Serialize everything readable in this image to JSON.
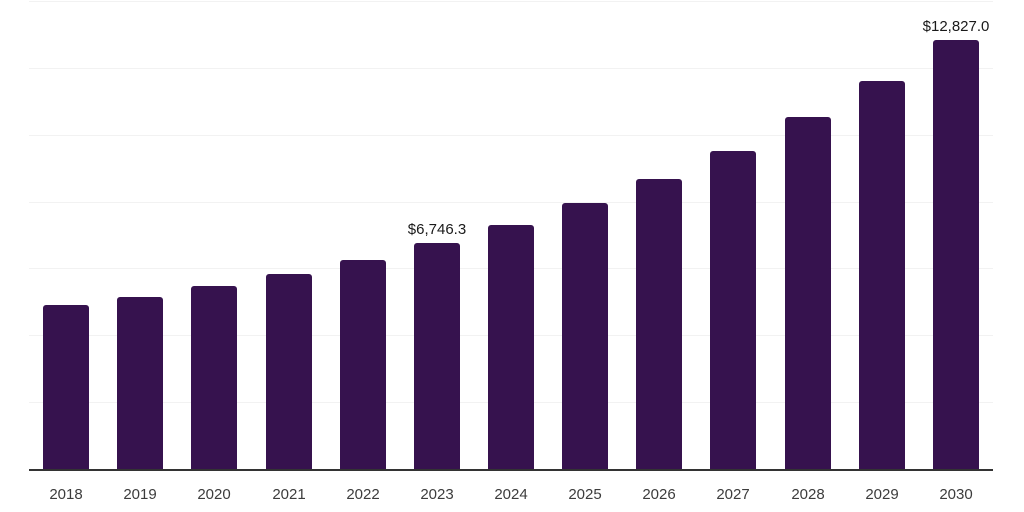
{
  "chart_data": {
    "type": "bar",
    "title": "",
    "xlabel": "",
    "ylabel": "",
    "categories": [
      "2018",
      "2019",
      "2020",
      "2021",
      "2022",
      "2023",
      "2024",
      "2025",
      "2026",
      "2027",
      "2028",
      "2029",
      "2030"
    ],
    "values": [
      4900,
      5150,
      5475,
      5830,
      6250,
      6746.3,
      7300,
      7950,
      8675,
      9520,
      10540,
      11620,
      12827
    ],
    "value_labels": [
      "",
      "",
      "",
      "",
      "",
      "$6,746.3",
      "",
      "",
      "",
      "",
      "",
      "",
      "$12,827.0"
    ],
    "ylim": [
      0,
      14000
    ],
    "gridline_step": 2000,
    "grid": "horizontal-faint",
    "legend": "none",
    "colors": {
      "bar": "#36124E",
      "gridline": "#f2f2f2",
      "axis_line": "#333333",
      "value_label": "#1a1a1a",
      "tick_label": "#3c3c3c",
      "background": "#ffffff"
    }
  }
}
